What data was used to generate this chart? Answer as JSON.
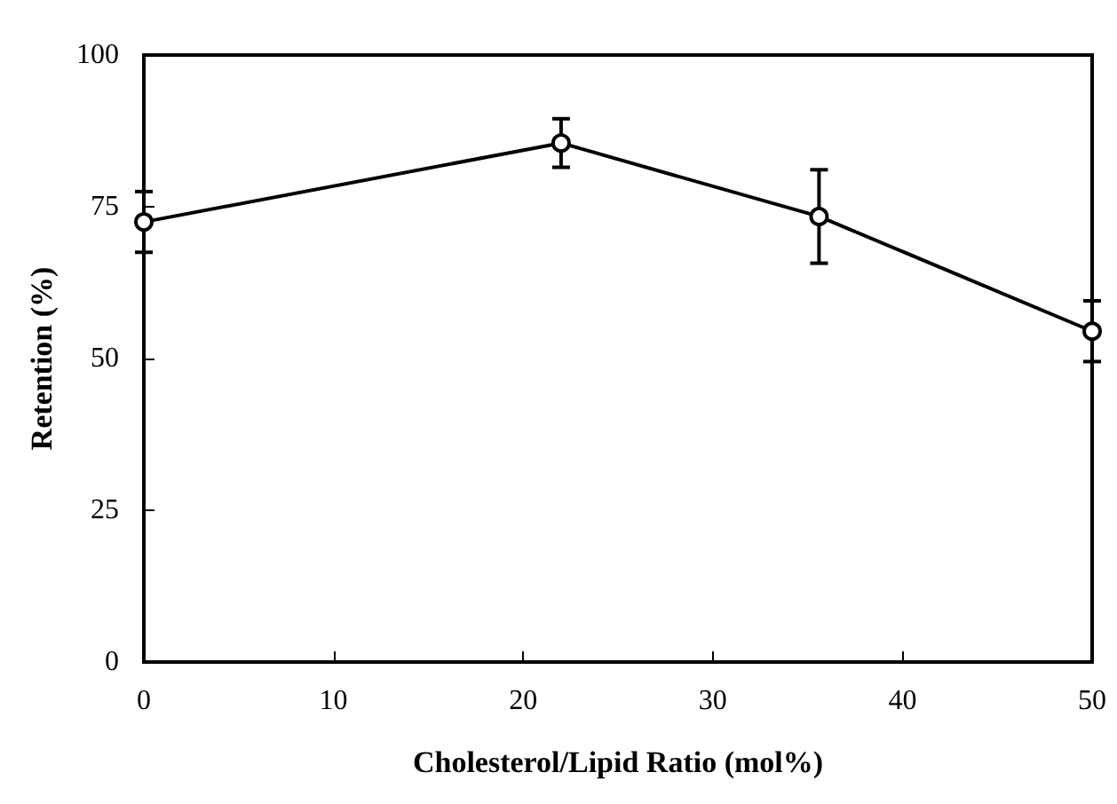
{
  "chart_data": {
    "type": "line",
    "xlabel": "Cholesterol/Lipid Ratio (mol%)",
    "ylabel": "Retention (%)",
    "x": [
      0,
      22,
      35.6,
      50
    ],
    "series": [
      {
        "color": "#000000",
        "values": [
          72.5,
          85.5,
          73.4,
          54.5
        ],
        "errors": [
          5,
          4,
          7.7,
          5
        ]
      }
    ],
    "xlim": [
      0,
      50
    ],
    "xticks": [
      0,
      10,
      20,
      30,
      40,
      50
    ],
    "ylim": [
      0,
      100
    ],
    "yticks": [
      0,
      25,
      50,
      75,
      100
    ],
    "grid": false,
    "marker": "circle",
    "line_style": "solid"
  }
}
